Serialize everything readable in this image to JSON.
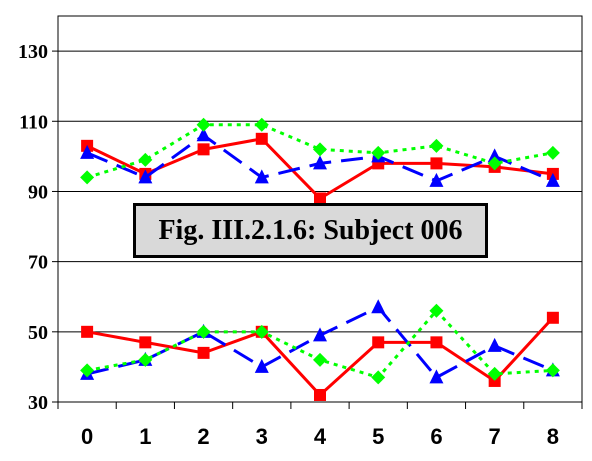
{
  "chart_data": {
    "type": "line",
    "annotation": "Fig. III.2.1.6: Subject 006",
    "x": [
      0,
      1,
      2,
      3,
      4,
      5,
      6,
      7,
      8
    ],
    "x_tick_labels": [
      "0",
      "1",
      "2",
      "3",
      "4",
      "5",
      "6",
      "7",
      "8"
    ],
    "y_ticks": [
      30,
      50,
      70,
      90,
      110,
      130
    ],
    "ylim": [
      30,
      140
    ],
    "grid": "horizontal",
    "legend": "none",
    "series": [
      {
        "key": "red-upper",
        "color": "#ff0000",
        "style": "solid",
        "marker": "square",
        "values": [
          103,
          95,
          102,
          105,
          88,
          98,
          98,
          97,
          95
        ]
      },
      {
        "key": "blue-upper",
        "color": "#0000ff",
        "style": "long-dash",
        "marker": "triangle",
        "values": [
          101,
          94,
          106,
          94,
          98,
          100,
          93,
          100,
          93
        ]
      },
      {
        "key": "green-upper",
        "color": "#00ff00",
        "style": "dotted",
        "marker": "diamond",
        "values": [
          94,
          99,
          109,
          109,
          102,
          101,
          103,
          98,
          101
        ]
      },
      {
        "key": "red-lower",
        "color": "#ff0000",
        "style": "solid",
        "marker": "square",
        "values": [
          50,
          47,
          44,
          50,
          32,
          47,
          47,
          36,
          54
        ]
      },
      {
        "key": "blue-lower",
        "color": "#0000ff",
        "style": "long-dash",
        "marker": "triangle",
        "values": [
          38,
          42,
          50,
          40,
          49,
          57,
          37,
          46,
          39
        ]
      },
      {
        "key": "green-lower",
        "color": "#00ff00",
        "style": "dotted",
        "marker": "diamond",
        "values": [
          39,
          42,
          50,
          50,
          42,
          37,
          56,
          38,
          39
        ]
      }
    ]
  }
}
